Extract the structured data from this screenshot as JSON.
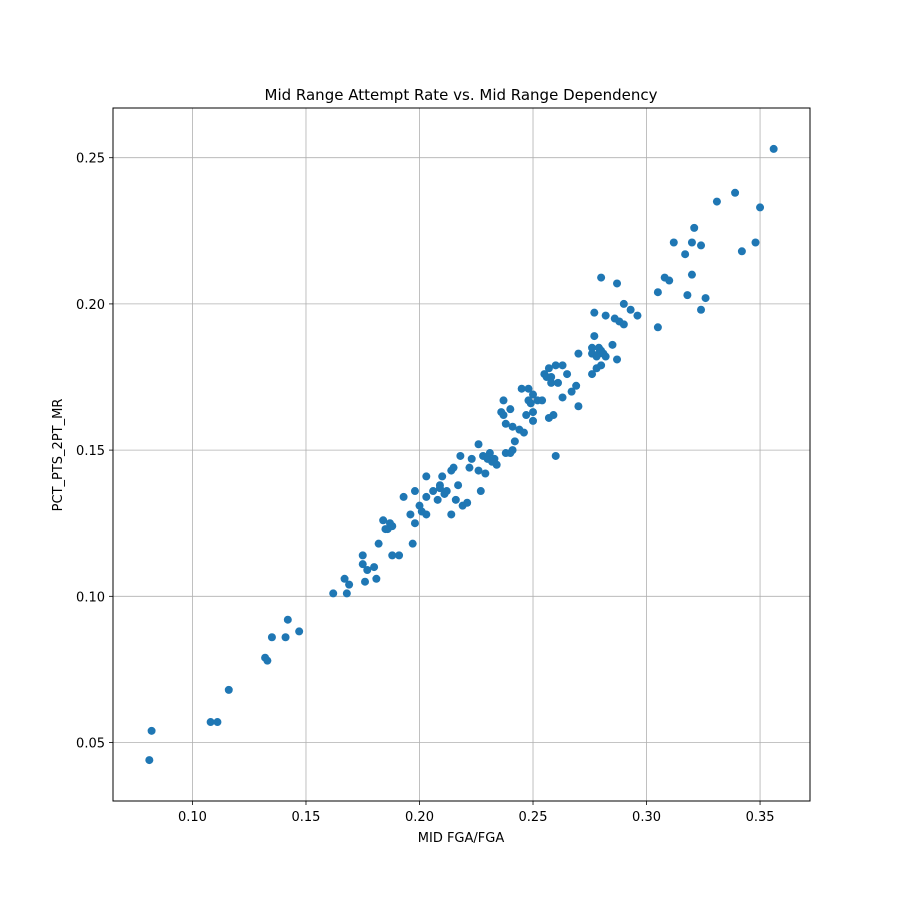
{
  "chart_data": {
    "type": "scatter",
    "title": "Mid Range Attempt Rate vs. Mid Range Dependency",
    "xlabel": "MID FGA/FGA",
    "ylabel": "PCT_PTS_2PT_MR",
    "xlim": [
      0.065,
      0.372
    ],
    "ylim": [
      0.03,
      0.267
    ],
    "xticks": [
      0.1,
      0.15,
      0.2,
      0.25,
      0.3,
      0.35
    ],
    "xtick_labels": [
      "0.10",
      "0.15",
      "0.20",
      "0.25",
      "0.30",
      "0.35"
    ],
    "yticks": [
      0.05,
      0.1,
      0.15,
      0.2,
      0.25
    ],
    "ytick_labels": [
      "0.05",
      "0.10",
      "0.15",
      "0.20",
      "0.25"
    ],
    "grid": true,
    "point_color": "#1f77b4",
    "points": [
      [
        0.081,
        0.044
      ],
      [
        0.082,
        0.054
      ],
      [
        0.108,
        0.057
      ],
      [
        0.111,
        0.057
      ],
      [
        0.116,
        0.068
      ],
      [
        0.132,
        0.079
      ],
      [
        0.133,
        0.078
      ],
      [
        0.135,
        0.086
      ],
      [
        0.141,
        0.086
      ],
      [
        0.142,
        0.092
      ],
      [
        0.147,
        0.088
      ],
      [
        0.162,
        0.101
      ],
      [
        0.167,
        0.106
      ],
      [
        0.168,
        0.101
      ],
      [
        0.169,
        0.104
      ],
      [
        0.175,
        0.114
      ],
      [
        0.175,
        0.111
      ],
      [
        0.176,
        0.105
      ],
      [
        0.177,
        0.109
      ],
      [
        0.18,
        0.11
      ],
      [
        0.181,
        0.106
      ],
      [
        0.182,
        0.118
      ],
      [
        0.184,
        0.126
      ],
      [
        0.185,
        0.123
      ],
      [
        0.186,
        0.123
      ],
      [
        0.187,
        0.125
      ],
      [
        0.188,
        0.124
      ],
      [
        0.188,
        0.114
      ],
      [
        0.191,
        0.114
      ],
      [
        0.193,
        0.134
      ],
      [
        0.196,
        0.128
      ],
      [
        0.197,
        0.118
      ],
      [
        0.198,
        0.125
      ],
      [
        0.198,
        0.136
      ],
      [
        0.2,
        0.131
      ],
      [
        0.201,
        0.129
      ],
      [
        0.203,
        0.134
      ],
      [
        0.203,
        0.141
      ],
      [
        0.203,
        0.128
      ],
      [
        0.206,
        0.136
      ],
      [
        0.208,
        0.133
      ],
      [
        0.209,
        0.137
      ],
      [
        0.209,
        0.138
      ],
      [
        0.21,
        0.141
      ],
      [
        0.211,
        0.135
      ],
      [
        0.212,
        0.136
      ],
      [
        0.214,
        0.143
      ],
      [
        0.214,
        0.128
      ],
      [
        0.215,
        0.144
      ],
      [
        0.216,
        0.133
      ],
      [
        0.217,
        0.138
      ],
      [
        0.218,
        0.148
      ],
      [
        0.219,
        0.131
      ],
      [
        0.221,
        0.132
      ],
      [
        0.222,
        0.144
      ],
      [
        0.223,
        0.147
      ],
      [
        0.226,
        0.143
      ],
      [
        0.226,
        0.152
      ],
      [
        0.227,
        0.136
      ],
      [
        0.228,
        0.148
      ],
      [
        0.229,
        0.142
      ],
      [
        0.23,
        0.147
      ],
      [
        0.231,
        0.149
      ],
      [
        0.232,
        0.146
      ],
      [
        0.233,
        0.147
      ],
      [
        0.234,
        0.145
      ],
      [
        0.236,
        0.163
      ],
      [
        0.237,
        0.167
      ],
      [
        0.237,
        0.162
      ],
      [
        0.238,
        0.159
      ],
      [
        0.238,
        0.149
      ],
      [
        0.24,
        0.149
      ],
      [
        0.24,
        0.164
      ],
      [
        0.241,
        0.158
      ],
      [
        0.241,
        0.15
      ],
      [
        0.242,
        0.153
      ],
      [
        0.244,
        0.157
      ],
      [
        0.245,
        0.171
      ],
      [
        0.246,
        0.156
      ],
      [
        0.247,
        0.162
      ],
      [
        0.248,
        0.171
      ],
      [
        0.248,
        0.167
      ],
      [
        0.249,
        0.166
      ],
      [
        0.25,
        0.169
      ],
      [
        0.25,
        0.163
      ],
      [
        0.25,
        0.16
      ],
      [
        0.252,
        0.167
      ],
      [
        0.254,
        0.167
      ],
      [
        0.255,
        0.176
      ],
      [
        0.256,
        0.175
      ],
      [
        0.257,
        0.178
      ],
      [
        0.257,
        0.161
      ],
      [
        0.258,
        0.173
      ],
      [
        0.258,
        0.175
      ],
      [
        0.259,
        0.162
      ],
      [
        0.26,
        0.179
      ],
      [
        0.26,
        0.148
      ],
      [
        0.261,
        0.173
      ],
      [
        0.263,
        0.179
      ],
      [
        0.263,
        0.168
      ],
      [
        0.265,
        0.176
      ],
      [
        0.267,
        0.17
      ],
      [
        0.269,
        0.172
      ],
      [
        0.27,
        0.183
      ],
      [
        0.27,
        0.165
      ],
      [
        0.276,
        0.176
      ],
      [
        0.276,
        0.185
      ],
      [
        0.276,
        0.183
      ],
      [
        0.277,
        0.189
      ],
      [
        0.277,
        0.197
      ],
      [
        0.278,
        0.182
      ],
      [
        0.278,
        0.178
      ],
      [
        0.279,
        0.185
      ],
      [
        0.279,
        0.183
      ],
      [
        0.28,
        0.209
      ],
      [
        0.28,
        0.184
      ],
      [
        0.28,
        0.179
      ],
      [
        0.281,
        0.183
      ],
      [
        0.282,
        0.182
      ],
      [
        0.282,
        0.196
      ],
      [
        0.285,
        0.186
      ],
      [
        0.286,
        0.195
      ],
      [
        0.287,
        0.181
      ],
      [
        0.287,
        0.207
      ],
      [
        0.288,
        0.194
      ],
      [
        0.29,
        0.2
      ],
      [
        0.29,
        0.193
      ],
      [
        0.293,
        0.198
      ],
      [
        0.296,
        0.196
      ],
      [
        0.305,
        0.204
      ],
      [
        0.305,
        0.192
      ],
      [
        0.308,
        0.209
      ],
      [
        0.31,
        0.208
      ],
      [
        0.312,
        0.221
      ],
      [
        0.317,
        0.217
      ],
      [
        0.318,
        0.203
      ],
      [
        0.32,
        0.221
      ],
      [
        0.32,
        0.21
      ],
      [
        0.321,
        0.226
      ],
      [
        0.324,
        0.22
      ],
      [
        0.324,
        0.198
      ],
      [
        0.326,
        0.202
      ],
      [
        0.331,
        0.235
      ],
      [
        0.339,
        0.238
      ],
      [
        0.342,
        0.218
      ],
      [
        0.348,
        0.221
      ],
      [
        0.35,
        0.233
      ],
      [
        0.356,
        0.253
      ]
    ]
  }
}
